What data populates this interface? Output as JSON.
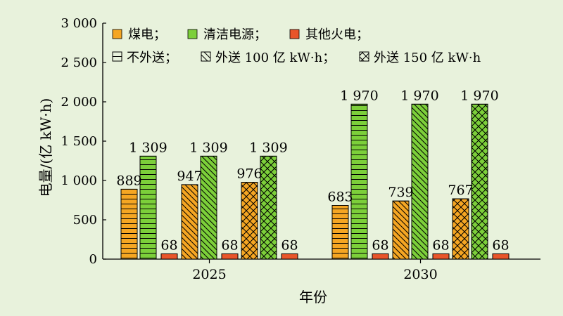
{
  "chart_data": {
    "type": "bar",
    "title": "",
    "xlabel": "年份",
    "ylabel": "电量/(亿 kW·h)",
    "ylim": [
      0,
      3000
    ],
    "yticks": [
      0,
      500,
      1000,
      1500,
      2000,
      2500,
      3000
    ],
    "ytick_labels": [
      "0",
      "500",
      "1 000",
      "1 500",
      "2 000",
      "2 500",
      "3 000"
    ],
    "grid": false,
    "legend_position": "top-left",
    "categories": [
      "2025",
      "2030"
    ],
    "legend": {
      "fuel": [
        {
          "name": "煤电；",
          "color": "#f5a623"
        },
        {
          "name": "清洁电源；",
          "color": "#7ccf3a"
        },
        {
          "name": "其他火电；",
          "color": "#e8552a"
        }
      ],
      "scenarios": [
        {
          "name": "不外送；",
          "pattern": "horizontal"
        },
        {
          "name": "外送 100 亿 kW·h；",
          "pattern": "diagonal"
        },
        {
          "name": "外送 150 亿 kW·h",
          "pattern": "cross"
        }
      ]
    },
    "groups": [
      {
        "category": "2025",
        "scenarios": [
          {
            "pattern": "horizontal",
            "coal": 889,
            "clean": 1309,
            "other": 68,
            "labels": {
              "coal": "889",
              "clean": "1 309",
              "other": "68"
            }
          },
          {
            "pattern": "diagonal",
            "coal": 947,
            "clean": 1309,
            "other": 68,
            "labels": {
              "coal": "947",
              "clean": "1 309",
              "other": "68"
            }
          },
          {
            "pattern": "cross",
            "coal": 976,
            "clean": 1309,
            "other": 68,
            "labels": {
              "coal": "976",
              "clean": "1 309",
              "other": "68"
            }
          }
        ]
      },
      {
        "category": "2030",
        "scenarios": [
          {
            "pattern": "horizontal",
            "coal": 683,
            "clean": 1970,
            "other": 68,
            "labels": {
              "coal": "683",
              "clean": "1 970",
              "other": "68"
            }
          },
          {
            "pattern": "diagonal",
            "coal": 739,
            "clean": 1970,
            "other": 68,
            "labels": {
              "coal": "739",
              "clean": "1 970",
              "other": "68"
            }
          },
          {
            "pattern": "cross",
            "coal": 767,
            "clean": 1970,
            "other": 68,
            "labels": {
              "coal": "767",
              "clean": "1 970",
              "other": "68"
            }
          }
        ]
      }
    ]
  }
}
